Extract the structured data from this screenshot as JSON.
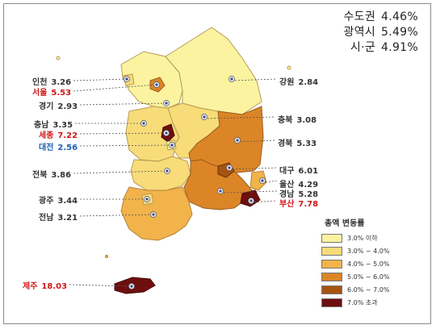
{
  "summary": [
    {
      "label": "수도권",
      "value": "4.46%"
    },
    {
      "label": "광역시",
      "value": "5.49%"
    },
    {
      "label": "시·군",
      "value": "4.91%"
    }
  ],
  "regions": [
    {
      "name": "인천",
      "value": "3.26",
      "style": "normal"
    },
    {
      "name": "서울",
      "value": "5.53",
      "style": "red"
    },
    {
      "name": "경기",
      "value": "2.93",
      "style": "normal"
    },
    {
      "name": "충남",
      "value": "3.35",
      "style": "normal"
    },
    {
      "name": "세종",
      "value": "7.22",
      "style": "red"
    },
    {
      "name": "대전",
      "value": "2.56",
      "style": "blue"
    },
    {
      "name": "전북",
      "value": "3.86",
      "style": "normal"
    },
    {
      "name": "광주",
      "value": "3.44",
      "style": "normal"
    },
    {
      "name": "전남",
      "value": "3.21",
      "style": "normal"
    },
    {
      "name": "강원",
      "value": "2.84",
      "style": "normal"
    },
    {
      "name": "충북",
      "value": "3.08",
      "style": "normal"
    },
    {
      "name": "경북",
      "value": "5.33",
      "style": "normal"
    },
    {
      "name": "대구",
      "value": "6.01",
      "style": "normal"
    },
    {
      "name": "울산",
      "value": "4.29",
      "style": "normal"
    },
    {
      "name": "경남",
      "value": "5.28",
      "style": "normal"
    },
    {
      "name": "부산",
      "value": "7.78",
      "style": "red"
    },
    {
      "name": "제주",
      "value": "18.03",
      "style": "red"
    }
  ],
  "legend": {
    "title": "총액 변동률",
    "items": [
      {
        "label": "3.0% 이하",
        "color": "#fbf3a0"
      },
      {
        "label": "3.0% ~ 4.0%",
        "color": "#f7dc79"
      },
      {
        "label": "4.0% ~ 5.0%",
        "color": "#f1b34a"
      },
      {
        "label": "5.0% ~ 6.0%",
        "color": "#db8527"
      },
      {
        "label": "6.0% ~ 7.0%",
        "color": "#a55412"
      },
      {
        "label": "7.0% 초과",
        "color": "#6e0f0f"
      }
    ]
  }
}
